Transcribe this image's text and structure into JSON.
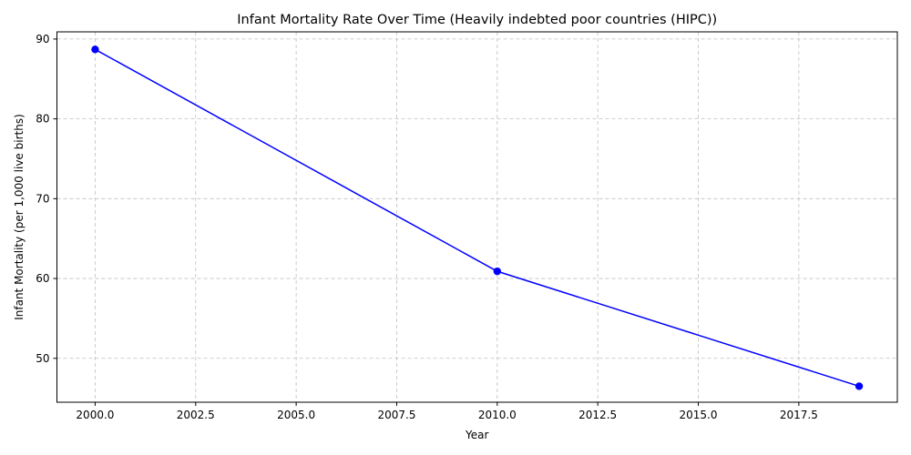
{
  "chart_data": {
    "type": "line",
    "title": "Infant Mortality Rate Over Time (Heavily indebted poor countries (HIPC))",
    "xlabel": "Year",
    "ylabel": "Infant Mortality (per 1,000 live births)",
    "xlim": [
      1999.05,
      2019.95
    ],
    "ylim": [
      44.5,
      90.9
    ],
    "xticks": [
      2000.0,
      2002.5,
      2005.0,
      2007.5,
      2010.0,
      2012.5,
      2015.0,
      2017.5
    ],
    "xtick_labels": [
      "2000.0",
      "2002.5",
      "2005.0",
      "2007.5",
      "2010.0",
      "2012.5",
      "2015.0",
      "2017.5"
    ],
    "yticks": [
      50,
      60,
      70,
      80,
      90
    ],
    "ytick_labels": [
      "50",
      "60",
      "70",
      "80",
      "90"
    ],
    "grid": true,
    "legend": "none",
    "series": [
      {
        "color": "#0000ff",
        "marker": "circle",
        "x": [
          2000,
          2010,
          2019
        ],
        "y": [
          88.7,
          60.9,
          46.5
        ]
      }
    ]
  }
}
